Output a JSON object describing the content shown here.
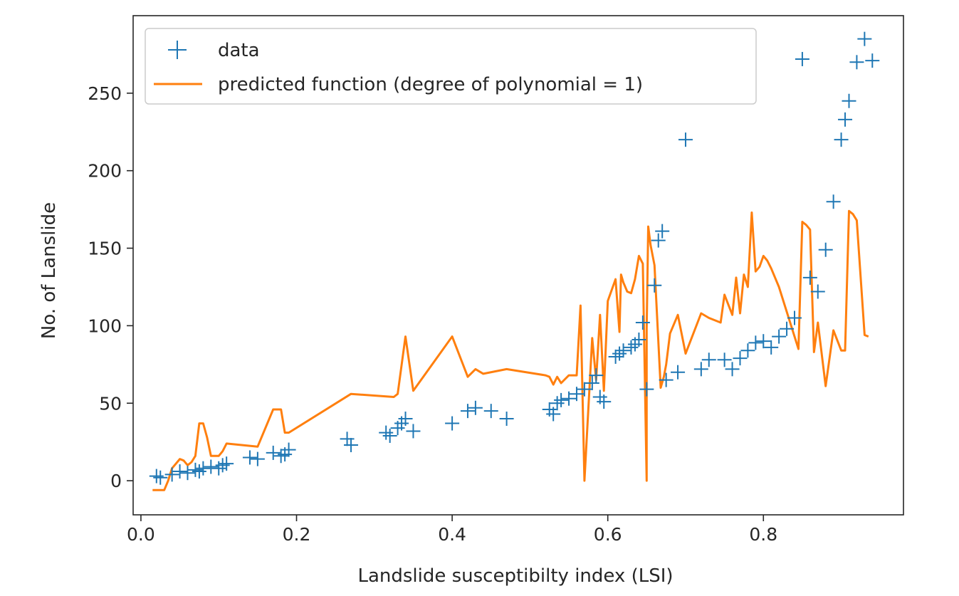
{
  "chart_data": {
    "type": "scatter",
    "title": "",
    "xlabel": "Landslide susceptibilty index (LSI)",
    "ylabel": "No. of Lanslide",
    "xlim": [
      -0.01,
      0.98
    ],
    "ylim": [
      -22,
      300
    ],
    "xticks": [
      0.0,
      0.2,
      0.4,
      0.6,
      0.8
    ],
    "xtick_labels": [
      "0.0",
      "0.2",
      "0.4",
      "0.6",
      "0.8"
    ],
    "yticks": [
      0,
      50,
      100,
      150,
      200,
      250
    ],
    "ytick_labels": [
      "0",
      "50",
      "100",
      "150",
      "200",
      "250"
    ],
    "grid": false,
    "legend_position": "upper-left",
    "series": [
      {
        "name": "data",
        "kind": "scatter",
        "marker": "plus",
        "color": "#1f77b4",
        "x": [
          0.02,
          0.025,
          0.04,
          0.05,
          0.06,
          0.07,
          0.075,
          0.08,
          0.09,
          0.1,
          0.105,
          0.11,
          0.14,
          0.15,
          0.17,
          0.18,
          0.185,
          0.19,
          0.265,
          0.27,
          0.315,
          0.32,
          0.33,
          0.335,
          0.34,
          0.35,
          0.4,
          0.42,
          0.43,
          0.45,
          0.47,
          0.525,
          0.53,
          0.535,
          0.54,
          0.55,
          0.56,
          0.57,
          0.58,
          0.585,
          0.59,
          0.595,
          0.61,
          0.615,
          0.62,
          0.63,
          0.635,
          0.64,
          0.645,
          0.65,
          0.66,
          0.665,
          0.67,
          0.675,
          0.69,
          0.7,
          0.72,
          0.73,
          0.75,
          0.76,
          0.77,
          0.78,
          0.79,
          0.8,
          0.81,
          0.82,
          0.83,
          0.84,
          0.85,
          0.86,
          0.87,
          0.88,
          0.89,
          0.9,
          0.905,
          0.91,
          0.92,
          0.93,
          0.94
        ],
        "y": [
          3,
          2,
          4,
          6,
          5,
          7,
          6,
          8,
          9,
          8,
          10,
          11,
          15,
          14,
          18,
          16,
          17,
          20,
          27,
          23,
          31,
          29,
          34,
          37,
          40,
          32,
          37,
          45,
          47,
          45,
          40,
          46,
          43,
          50,
          52,
          53,
          56,
          59,
          63,
          68,
          54,
          51,
          80,
          82,
          84,
          86,
          88,
          91,
          102,
          59,
          126,
          155,
          161,
          65,
          70,
          220,
          72,
          78,
          78,
          72,
          79,
          84,
          89,
          90,
          86,
          93,
          98,
          105,
          272,
          131,
          122,
          149,
          180,
          220,
          233,
          245,
          270,
          285,
          271
        ]
      },
      {
        "name": "predicted function (degree of polynomial = 1)",
        "kind": "line",
        "color": "#ff7f0e",
        "x": [
          0.015,
          0.025,
          0.03,
          0.035,
          0.04,
          0.05,
          0.055,
          0.06,
          0.065,
          0.07,
          0.075,
          0.08,
          0.085,
          0.09,
          0.1,
          0.105,
          0.11,
          0.15,
          0.17,
          0.18,
          0.185,
          0.19,
          0.27,
          0.325,
          0.33,
          0.34,
          0.35,
          0.4,
          0.42,
          0.43,
          0.44,
          0.47,
          0.52,
          0.525,
          0.53,
          0.535,
          0.54,
          0.55,
          0.56,
          0.565,
          0.57,
          0.58,
          0.585,
          0.59,
          0.595,
          0.6,
          0.61,
          0.615,
          0.617,
          0.62,
          0.625,
          0.63,
          0.635,
          0.64,
          0.645,
          0.65,
          0.65,
          0.652,
          0.655,
          0.66,
          0.668,
          0.672,
          0.675,
          0.68,
          0.69,
          0.7,
          0.72,
          0.73,
          0.745,
          0.75,
          0.76,
          0.765,
          0.77,
          0.775,
          0.78,
          0.785,
          0.79,
          0.795,
          0.8,
          0.805,
          0.81,
          0.82,
          0.845,
          0.85,
          0.855,
          0.86,
          0.865,
          0.87,
          0.88,
          0.89,
          0.9,
          0.905,
          0.91,
          0.915,
          0.92,
          0.93,
          0.935
        ],
        "y": [
          -6,
          -6,
          -6,
          0,
          8,
          14,
          13,
          10,
          12,
          16,
          37,
          37,
          28,
          16,
          16,
          19,
          24,
          22,
          46,
          46,
          31,
          31,
          56,
          54,
          56,
          93,
          58,
          93,
          67,
          72,
          69,
          72,
          68,
          67,
          62,
          67,
          63,
          68,
          68,
          113,
          0,
          92,
          65,
          107,
          58,
          116,
          130,
          96,
          133,
          128,
          122,
          121,
          130,
          145,
          140,
          0,
          98,
          164,
          152,
          139,
          60,
          67,
          75,
          95,
          107,
          82,
          108,
          105,
          102,
          120,
          107,
          131,
          108,
          133,
          125,
          173,
          135,
          138,
          145,
          142,
          137,
          125,
          85,
          167,
          165,
          162,
          83,
          102,
          61,
          97,
          84,
          84,
          174,
          172,
          168,
          94,
          93
        ]
      }
    ]
  }
}
